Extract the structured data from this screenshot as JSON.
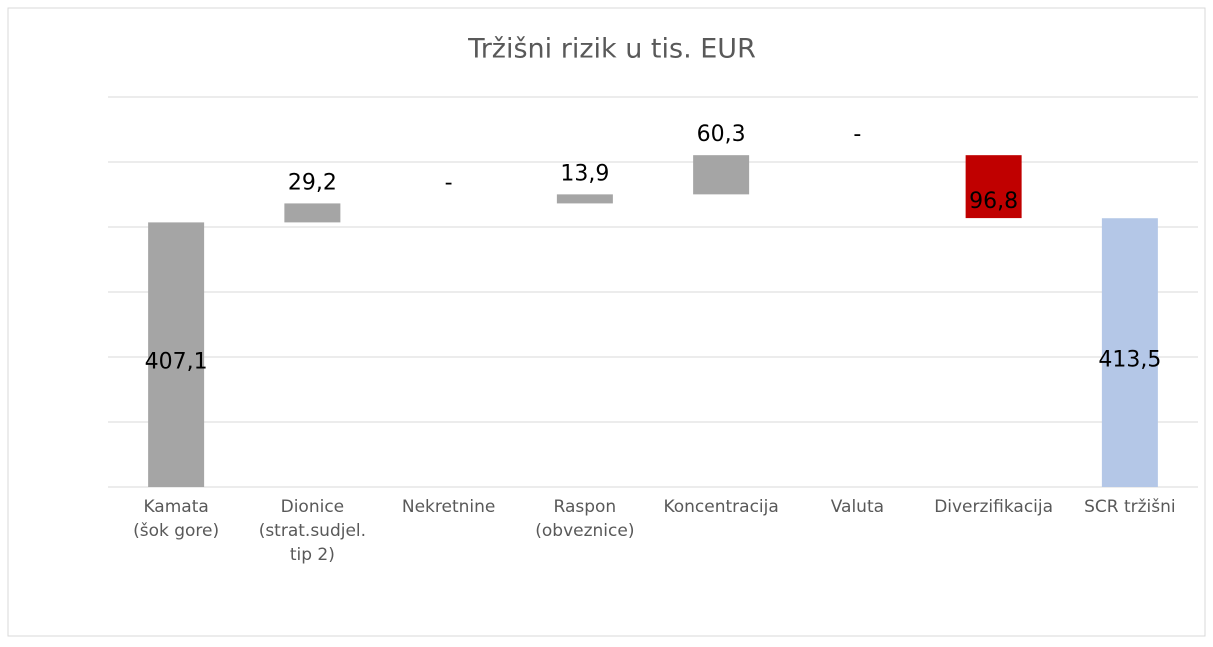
{
  "chart_data": {
    "type": "waterfall",
    "title": "Tržišni rizik u tis. EUR",
    "categories": [
      [
        "Kamata",
        "(šok gore)"
      ],
      [
        "Dionice",
        "(strat.sudjel.",
        "tip 2)"
      ],
      [
        "Nekretnine"
      ],
      [
        "Raspon",
        "(obveznice)"
      ],
      [
        "Koncentracija"
      ],
      [
        "Valuta"
      ],
      [
        "Diverzifikacija"
      ],
      [
        "SCR tržišni"
      ]
    ],
    "values": [
      407.1,
      29.2,
      0,
      13.9,
      60.3,
      0,
      -96.8,
      413.5
    ],
    "value_labels": [
      "407,1",
      "29,2",
      "-",
      "13,9",
      "60,3",
      "-",
      "96,8",
      "413,5"
    ],
    "totals": [
      false,
      false,
      false,
      false,
      false,
      false,
      false,
      true
    ],
    "colors": [
      "#a5a5a5",
      "#a5a5a5",
      "#a5a5a5",
      "#a5a5a5",
      "#a5a5a5",
      "#a5a5a5",
      "#c00000",
      "#b4c7e7"
    ],
    "ylim": [
      0,
      600
    ],
    "yticks": [
      0,
      100,
      200,
      300,
      400,
      500,
      600
    ],
    "grid": true
  }
}
